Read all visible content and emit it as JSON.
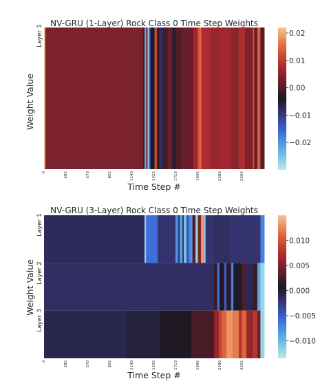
{
  "chart_data": [
    {
      "type": "heatmap",
      "title": "NV-GRU (1-Layer) Rock Class 0 Time Step Weights",
      "xlabel": "Time Step #",
      "ylabel": "Weight Value",
      "rows": [
        "Layer 1"
      ],
      "x_ticks": [
        "0",
        "285",
        "570",
        "855",
        "1140",
        "1425",
        "1710",
        "1995",
        "2280",
        "2565"
      ],
      "x_range": [
        0,
        2850
      ],
      "colormap": "icefire",
      "colorbar_range": [
        -0.03,
        0.022
      ],
      "colorbar_ticks": [
        "0.02",
        "0.01",
        "0.00",
        "−0.01",
        "−0.02"
      ],
      "colorbar_tick_values": [
        0.02,
        0.01,
        0.0,
        -0.01,
        -0.02
      ],
      "segments": [
        {
          "rows": [
            0
          ],
          "x": [
            0,
            15
          ],
          "v": 0.022
        },
        {
          "rows": [
            0
          ],
          "x": [
            15,
            1280
          ],
          "v": 0.0035
        },
        {
          "rows": [
            0
          ],
          "x": [
            1280,
            1300
          ],
          "v": -0.006
        },
        {
          "rows": [
            0
          ],
          "x": [
            1300,
            1320
          ],
          "v": -0.022
        },
        {
          "rows": [
            0
          ],
          "x": [
            1320,
            1340
          ],
          "v": 0.006
        },
        {
          "rows": [
            0
          ],
          "x": [
            1340,
            1360
          ],
          "v": -0.026
        },
        {
          "rows": [
            0
          ],
          "x": [
            1360,
            1380
          ],
          "v": -0.012
        },
        {
          "rows": [
            0
          ],
          "x": [
            1380,
            1430
          ],
          "v": -0.004
        },
        {
          "rows": [
            0
          ],
          "x": [
            1430,
            1460
          ],
          "v": 0.012
        },
        {
          "rows": [
            0
          ],
          "x": [
            1460,
            1490
          ],
          "v": -0.002
        },
        {
          "rows": [
            0
          ],
          "x": [
            1490,
            1540
          ],
          "v": -0.008
        },
        {
          "rows": [
            0
          ],
          "x": [
            1540,
            1600
          ],
          "v": -0.001
        },
        {
          "rows": [
            0
          ],
          "x": [
            1600,
            1660
          ],
          "v": 0.002
        },
        {
          "rows": [
            0
          ],
          "x": [
            1660,
            1700
          ],
          "v": -0.005
        },
        {
          "rows": [
            0
          ],
          "x": [
            1700,
            1780
          ],
          "v": 0.0
        },
        {
          "rows": [
            0
          ],
          "x": [
            1780,
            1930
          ],
          "v": 0.002
        },
        {
          "rows": [
            0
          ],
          "x": [
            1930,
            1990
          ],
          "v": 0.007
        },
        {
          "rows": [
            0
          ],
          "x": [
            1990,
            2010
          ],
          "v": 0.013
        },
        {
          "rows": [
            0
          ],
          "x": [
            2010,
            2035
          ],
          "v": 0.015
        },
        {
          "rows": [
            0
          ],
          "x": [
            2035,
            2160
          ],
          "v": 0.008
        },
        {
          "rows": [
            0
          ],
          "x": [
            2160,
            2280
          ],
          "v": 0.006
        },
        {
          "rows": [
            0
          ],
          "x": [
            2280,
            2420
          ],
          "v": 0.007
        },
        {
          "rows": [
            0
          ],
          "x": [
            2420,
            2520
          ],
          "v": 0.005
        },
        {
          "rows": [
            0
          ],
          "x": [
            2520,
            2600
          ],
          "v": 0.008
        },
        {
          "rows": [
            0
          ],
          "x": [
            2600,
            2700
          ],
          "v": 0.004
        },
        {
          "rows": [
            0
          ],
          "x": [
            2700,
            2720
          ],
          "v": 0.012
        },
        {
          "rows": [
            0
          ],
          "x": [
            2720,
            2760
          ],
          "v": 0.002
        },
        {
          "rows": [
            0
          ],
          "x": [
            2760,
            2800
          ],
          "v": 0.014
        },
        {
          "rows": [
            0
          ],
          "x": [
            2800,
            2850
          ],
          "v": 0.0
        }
      ]
    },
    {
      "type": "heatmap",
      "title": "NV-GRU (3-Layer) Rock Class 0 Time Step Weights",
      "xlabel": "Time Step #",
      "ylabel": "Weight Value",
      "rows": [
        "Layer 1",
        "Layer 2",
        "Layer 3"
      ],
      "x_ticks": [
        "0",
        "285",
        "570",
        "855",
        "1140",
        "1425",
        "1710",
        "1995",
        "2280",
        "2565"
      ],
      "x_range": [
        0,
        2850
      ],
      "colormap": "icefire",
      "colorbar_range": [
        -0.0135,
        0.015
      ],
      "colorbar_ticks": [
        "0.010",
        "0.005",
        "0.000",
        "−0.005",
        "−0.010"
      ],
      "colorbar_tick_values": [
        0.01,
        0.005,
        0.0,
        -0.005,
        -0.01
      ],
      "segments": [
        {
          "rows": [
            0
          ],
          "x": [
            0,
            1300
          ],
          "v": -0.0012
        },
        {
          "rows": [
            0
          ],
          "x": [
            1300,
            1320
          ],
          "v": -0.012
        },
        {
          "rows": [
            0
          ],
          "x": [
            1320,
            1470
          ],
          "v": -0.006
        },
        {
          "rows": [
            0
          ],
          "x": [
            1470,
            1700
          ],
          "v": -0.002
        },
        {
          "rows": [
            0
          ],
          "x": [
            1700,
            1730
          ],
          "v": -0.008
        },
        {
          "rows": [
            0
          ],
          "x": [
            1730,
            1760
          ],
          "v": -0.003
        },
        {
          "rows": [
            0
          ],
          "x": [
            1760,
            1790
          ],
          "v": -0.009
        },
        {
          "rows": [
            0
          ],
          "x": [
            1790,
            1810
          ],
          "v": -0.002
        },
        {
          "rows": [
            0
          ],
          "x": [
            1810,
            1840
          ],
          "v": -0.011
        },
        {
          "rows": [
            0
          ],
          "x": [
            1840,
            1880
          ],
          "v": -0.005
        },
        {
          "rows": [
            0
          ],
          "x": [
            1880,
            1920
          ],
          "v": -0.008
        },
        {
          "rows": [
            0
          ],
          "x": [
            1920,
            1960
          ],
          "v": 0.003
        },
        {
          "rows": [
            0
          ],
          "x": [
            1960,
            1990
          ],
          "v": -0.012
        },
        {
          "rows": [
            0
          ],
          "x": [
            1990,
            2030
          ],
          "v": 0.005
        },
        {
          "rows": [
            0
          ],
          "x": [
            2030,
            2070
          ],
          "v": 0.013
        },
        {
          "rows": [
            0
          ],
          "x": [
            2070,
            2090
          ],
          "v": -0.011
        },
        {
          "rows": [
            0
          ],
          "x": [
            2090,
            2200
          ],
          "v": -0.002
        },
        {
          "rows": [
            0
          ],
          "x": [
            2200,
            2400
          ],
          "v": -0.0015
        },
        {
          "rows": [
            0
          ],
          "x": [
            2400,
            2800
          ],
          "v": -0.002
        },
        {
          "rows": [
            0
          ],
          "x": [
            2800,
            2850
          ],
          "v": -0.007
        },
        {
          "rows": [
            1
          ],
          "x": [
            0,
            2200
          ],
          "v": -0.0015
        },
        {
          "rows": [
            1
          ],
          "x": [
            2200,
            2240
          ],
          "v": 0.002
        },
        {
          "rows": [
            1
          ],
          "x": [
            2240,
            2270
          ],
          "v": -0.006
        },
        {
          "rows": [
            1
          ],
          "x": [
            2270,
            2330
          ],
          "v": 0.001
        },
        {
          "rows": [
            1
          ],
          "x": [
            2330,
            2360
          ],
          "v": -0.005
        },
        {
          "rows": [
            1
          ],
          "x": [
            2360,
            2420
          ],
          "v": 0.0015
        },
        {
          "rows": [
            1
          ],
          "x": [
            2420,
            2450
          ],
          "v": -0.007
        },
        {
          "rows": [
            1
          ],
          "x": [
            2450,
            2560
          ],
          "v": 0.0005
        },
        {
          "rows": [
            1
          ],
          "x": [
            2560,
            2600
          ],
          "v": 0.003
        },
        {
          "rows": [
            1
          ],
          "x": [
            2600,
            2700
          ],
          "v": -0.001
        },
        {
          "rows": [
            1
          ],
          "x": [
            2700,
            2760
          ],
          "v": 0.002
        },
        {
          "rows": [
            1
          ],
          "x": [
            2760,
            2800
          ],
          "v": -0.009
        },
        {
          "rows": [
            1
          ],
          "x": [
            2800,
            2850
          ],
          "v": -0.012
        },
        {
          "rows": [
            2
          ],
          "x": [
            0,
            1050
          ],
          "v": -0.0008
        },
        {
          "rows": [
            2
          ],
          "x": [
            1050,
            1500
          ],
          "v": -0.0003
        },
        {
          "rows": [
            2
          ],
          "x": [
            1500,
            1900
          ],
          "v": 0.0008
        },
        {
          "rows": [
            2
          ],
          "x": [
            1900,
            2200
          ],
          "v": 0.0025
        },
        {
          "rows": [
            2
          ],
          "x": [
            2200,
            2260
          ],
          "v": 0.006
        },
        {
          "rows": [
            2
          ],
          "x": [
            2260,
            2300
          ],
          "v": 0.009
        },
        {
          "rows": [
            2
          ],
          "x": [
            2300,
            2360
          ],
          "v": 0.011
        },
        {
          "rows": [
            2
          ],
          "x": [
            2360,
            2440
          ],
          "v": 0.013
        },
        {
          "rows": [
            2
          ],
          "x": [
            2440,
            2520
          ],
          "v": 0.012
        },
        {
          "rows": [
            2
          ],
          "x": [
            2520,
            2560
          ],
          "v": 0.008
        },
        {
          "rows": [
            2
          ],
          "x": [
            2560,
            2620
          ],
          "v": 0.011
        },
        {
          "rows": [
            2
          ],
          "x": [
            2620,
            2700
          ],
          "v": 0.006
        },
        {
          "rows": [
            2
          ],
          "x": [
            2700,
            2760
          ],
          "v": 0.008
        },
        {
          "rows": [
            2
          ],
          "x": [
            2760,
            2800
          ],
          "v": 0.004
        },
        {
          "rows": [
            2
          ],
          "x": [
            2800,
            2850
          ],
          "v": -0.012
        }
      ]
    }
  ]
}
